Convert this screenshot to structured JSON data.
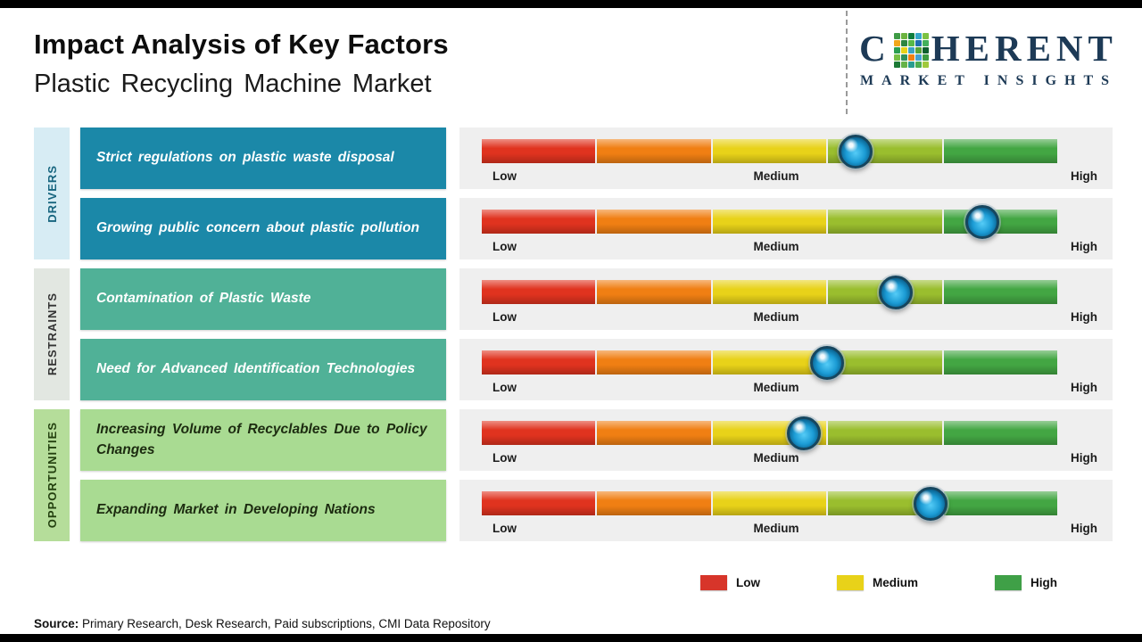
{
  "page": {
    "title": "Impact Analysis of Key Factors",
    "subtitle": "Plastic Recycling Machine Market",
    "source_label": "Source:",
    "source_text": " Primary Research, Desk Research, Paid subscriptions, CMI Data Repository"
  },
  "logo": {
    "word_prefix": "C",
    "word_suffix": "HERENT",
    "subtitle": "MARKET INSIGHTS",
    "color": "#1d3a56",
    "mosaic_colors": [
      "#3f9b46",
      "#6cb33f",
      "#0f7d3c",
      "#35a7c9",
      "#7cc242",
      "#f2a71b",
      "#2e8540",
      "#58b947",
      "#1f6fae",
      "#43b05c",
      "#2b9e4f",
      "#e8d219",
      "#3aa3c4",
      "#57a336",
      "#0e5f2e",
      "#77bf43",
      "#2f8f5b",
      "#f07f13",
      "#44a0d0",
      "#3c9b3f",
      "#1c7a36",
      "#66b348",
      "#2a9d8f",
      "#4cae4f",
      "#a0c93c"
    ]
  },
  "legend": {
    "items": [
      {
        "label": "Low",
        "color": "#d7352a"
      },
      {
        "label": "Medium",
        "color": "#e8d219"
      },
      {
        "label": "High",
        "color": "#3fa047"
      }
    ]
  },
  "chart_data": {
    "type": "heatmap",
    "subtype": "impact-scale-bars",
    "title": "Impact Analysis of Key Factors",
    "subtitle": "Plastic Recycling Machine Market",
    "scale": {
      "min_label": "Low",
      "mid_label": "Medium",
      "max_label": "High",
      "range_pct": [
        0,
        100
      ]
    },
    "segment_colors": [
      "#e0331f",
      "#f07f13",
      "#e8d219",
      "#9abe2e",
      "#43a643"
    ],
    "groups": [
      {
        "name": "DRIVERS",
        "strip_bg": "#d7ecf4",
        "strip_text": "#17657f",
        "factor_bg": "#1b88a8",
        "factor_text": "#ffffff",
        "rows": [
          {
            "factor": "Strict regulations on plastic waste disposal",
            "impact_pct": 65
          },
          {
            "factor": "Growing public concern about plastic pollution",
            "impact_pct": 87
          }
        ]
      },
      {
        "name": "RESTRAINTS",
        "strip_bg": "#e2e7e1",
        "strip_text": "#333333",
        "factor_bg": "#50b197",
        "factor_text": "#ffffff",
        "rows": [
          {
            "factor": "Contamination of Plastic Waste",
            "impact_pct": 72
          },
          {
            "factor": "Need for Advanced Identification Technologies",
            "impact_pct": 60
          }
        ]
      },
      {
        "name": "OPPORTUNITIES",
        "strip_bg": "#b5dd9a",
        "strip_text": "#23400f",
        "factor_bg": "#a9db92",
        "factor_text": "#1c2b10",
        "rows": [
          {
            "factor": "Increasing Volume of Recyclables Due to Policy Changes",
            "impact_pct": 56
          },
          {
            "factor": "Expanding Market in Developing Nations",
            "impact_pct": 78
          }
        ]
      }
    ]
  }
}
